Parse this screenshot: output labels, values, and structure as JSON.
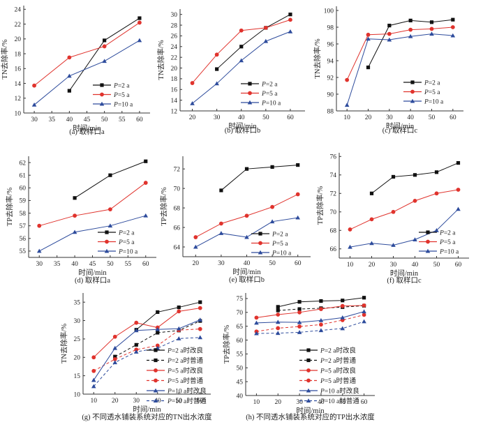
{
  "figure": {
    "colors": {
      "P2": "#111111",
      "P5": "#e0332d",
      "P10": "#2d4b9c"
    }
  },
  "chart_data": [
    {
      "id": "a",
      "type": "line",
      "caption": "(a) 取样口a",
      "xlabel": "时间/min",
      "ylabel": "TN去除率/%",
      "xlim": [
        27,
        63
      ],
      "ylim": [
        10,
        24.5
      ],
      "xticks": [
        30,
        35,
        40,
        45,
        50,
        55,
        60
      ],
      "yticks": [
        10,
        12,
        14,
        16,
        18,
        20,
        22,
        24
      ],
      "legend": "bottom-right",
      "series": [
        {
          "name": "P=2 a",
          "color_key": "P2",
          "marker": "square",
          "dash": false,
          "x": [
            40,
            50,
            60
          ],
          "values": [
            13.0,
            19.8,
            22.8
          ]
        },
        {
          "name": "P=5 a",
          "color_key": "P5",
          "marker": "circle",
          "dash": false,
          "x": [
            30,
            40,
            50,
            60
          ],
          "values": [
            13.7,
            17.5,
            19.0,
            22.2
          ]
        },
        {
          "name": "P=10 a",
          "color_key": "P10",
          "marker": "triangle",
          "dash": false,
          "x": [
            30,
            40,
            50,
            60
          ],
          "values": [
            11.1,
            15.0,
            17.0,
            19.8
          ]
        }
      ]
    },
    {
      "id": "b",
      "type": "line",
      "caption": "(b) 取样口b",
      "xlabel": "时间/min",
      "ylabel": "TN去除率/%",
      "xlim": [
        15,
        66
      ],
      "ylim": [
        12,
        31
      ],
      "xticks": [
        20,
        30,
        40,
        50,
        60
      ],
      "yticks": [
        12,
        14,
        16,
        18,
        20,
        22,
        24,
        26,
        28,
        30
      ],
      "legend": "bottom-right",
      "series": [
        {
          "name": "P=2 a",
          "color_key": "P2",
          "marker": "square",
          "dash": false,
          "x": [
            30,
            40,
            50,
            60
          ],
          "values": [
            19.8,
            24.0,
            27.5,
            30.0
          ]
        },
        {
          "name": "P=5 a",
          "color_key": "P5",
          "marker": "circle",
          "dash": false,
          "x": [
            20,
            30,
            40,
            50,
            60
          ],
          "values": [
            17.2,
            22.5,
            27.0,
            27.5,
            29.0
          ]
        },
        {
          "name": "P=10 a",
          "color_key": "P10",
          "marker": "triangle",
          "dash": false,
          "x": [
            20,
            30,
            40,
            50,
            60
          ],
          "values": [
            13.4,
            17.1,
            21.4,
            25.0,
            26.8
          ]
        }
      ]
    },
    {
      "id": "c",
      "type": "line",
      "caption": "(c) 取样口c",
      "xlabel": "时间/min",
      "ylabel": "TN去除率/%",
      "xlim": [
        5,
        65
      ],
      "ylim": [
        88,
        100.5
      ],
      "xticks": [
        10,
        20,
        30,
        40,
        50,
        60
      ],
      "yticks": [
        88,
        90,
        92,
        94,
        96,
        98,
        100
      ],
      "legend": "bottom-right",
      "series": [
        {
          "name": "P=2 a",
          "color_key": "P2",
          "marker": "square",
          "dash": false,
          "x": [
            20,
            30,
            40,
            50,
            60
          ],
          "values": [
            93.2,
            98.2,
            98.8,
            98.6,
            98.9
          ]
        },
        {
          "name": "P=5 a",
          "color_key": "P5",
          "marker": "circle",
          "dash": false,
          "x": [
            10,
            20,
            30,
            40,
            50,
            60
          ],
          "values": [
            91.7,
            97.1,
            97.2,
            97.7,
            97.8,
            98.0
          ]
        },
        {
          "name": "P=10 a",
          "color_key": "P10",
          "marker": "triangle",
          "dash": false,
          "x": [
            10,
            20,
            30,
            40,
            50,
            60
          ],
          "values": [
            88.7,
            96.6,
            96.5,
            96.9,
            97.2,
            97.0
          ]
        }
      ]
    },
    {
      "id": "d",
      "type": "line",
      "caption": "(d) 取样口a",
      "xlabel": "时间/min",
      "ylabel": "TP去除率/%",
      "xlim": [
        27,
        63
      ],
      "ylim": [
        54.5,
        62.5
      ],
      "xticks": [
        30,
        35,
        40,
        45,
        50,
        55,
        60
      ],
      "yticks": [
        55,
        56,
        57,
        58,
        59,
        60,
        61,
        62
      ],
      "legend": "bottom-right",
      "series": [
        {
          "name": "P=2 a",
          "color_key": "P2",
          "marker": "square",
          "dash": false,
          "x": [
            40,
            50,
            60
          ],
          "values": [
            59.2,
            61.0,
            62.1
          ]
        },
        {
          "name": "P=5 a",
          "color_key": "P5",
          "marker": "circle",
          "dash": false,
          "x": [
            30,
            40,
            50,
            60
          ],
          "values": [
            57.0,
            57.8,
            58.3,
            60.4
          ]
        },
        {
          "name": "P=10 a",
          "color_key": "P10",
          "marker": "triangle",
          "dash": false,
          "x": [
            30,
            40,
            50,
            60
          ],
          "values": [
            55.0,
            56.5,
            57.0,
            57.8
          ]
        }
      ]
    },
    {
      "id": "e",
      "type": "line",
      "caption": "(e) 取样口b",
      "xlabel": "时间/min",
      "ylabel": "TP去除率/%",
      "xlim": [
        15,
        65
      ],
      "ylim": [
        63,
        73.3
      ],
      "xticks": [
        20,
        30,
        40,
        50,
        60
      ],
      "yticks": [
        64,
        66,
        68,
        70,
        72
      ],
      "legend": "bottom-right",
      "series": [
        {
          "name": "P=2 a",
          "color_key": "P2",
          "marker": "square",
          "dash": false,
          "x": [
            30,
            40,
            50,
            60
          ],
          "values": [
            69.8,
            72.0,
            72.2,
            72.4
          ]
        },
        {
          "name": "P=5 a",
          "color_key": "P5",
          "marker": "circle",
          "dash": false,
          "x": [
            20,
            30,
            40,
            50,
            60
          ],
          "values": [
            65.0,
            66.4,
            67.2,
            68.1,
            69.4
          ]
        },
        {
          "name": "P=10 a",
          "color_key": "P10",
          "marker": "triangle",
          "dash": false,
          "x": [
            20,
            30,
            40,
            50,
            60
          ],
          "values": [
            64.0,
            65.4,
            65.0,
            66.6,
            67.0
          ]
        }
      ]
    },
    {
      "id": "f",
      "type": "line",
      "caption": "(f) 取样口c",
      "xlabel": "时间/min",
      "ylabel": "TP去除率/%",
      "xlim": [
        5,
        65
      ],
      "ylim": [
        65,
        76.4
      ],
      "xticks": [
        10,
        20,
        30,
        40,
        50,
        60
      ],
      "yticks": [
        66,
        68,
        70,
        72,
        74,
        76
      ],
      "legend": "bottom-right",
      "series": [
        {
          "name": "P=2 a",
          "color_key": "P2",
          "marker": "square",
          "dash": false,
          "x": [
            20,
            30,
            40,
            50,
            60
          ],
          "values": [
            72.0,
            73.8,
            74.0,
            74.3,
            75.3
          ]
        },
        {
          "name": "P=5 a",
          "color_key": "P5",
          "marker": "circle",
          "dash": false,
          "x": [
            10,
            20,
            30,
            40,
            50,
            60
          ],
          "values": [
            68.1,
            69.2,
            70.0,
            71.2,
            72.0,
            72.4
          ]
        },
        {
          "name": "P=10 a",
          "color_key": "P10",
          "marker": "triangle",
          "dash": false,
          "x": [
            10,
            20,
            30,
            40,
            50,
            60
          ],
          "values": [
            66.2,
            66.6,
            66.4,
            67.0,
            68.0,
            70.3
          ]
        }
      ]
    },
    {
      "id": "g",
      "type": "line",
      "caption": "(g) 不同透水铺装系统对应的TN出水浓度",
      "xlabel": "时间/min",
      "ylabel": "TN去除率/%",
      "xlim": [
        5,
        65
      ],
      "ylim": [
        10,
        37.5
      ],
      "xticks": [
        10,
        20,
        30,
        40,
        50,
        60
      ],
      "yticks": [
        10,
        15,
        20,
        25,
        30,
        35
      ],
      "legend": "bottom-right",
      "series": [
        {
          "name": "P=2 a时改良",
          "color_key": "P2",
          "marker": "square",
          "dash": false,
          "x": [
            30,
            40,
            50,
            60
          ],
          "values": [
            27.5,
            32.3,
            33.6,
            35.0
          ]
        },
        {
          "name": "P=2 a时普通",
          "color_key": "P2",
          "marker": "square",
          "dash": true,
          "x": [
            20,
            30,
            40,
            50,
            60
          ],
          "values": [
            20.2,
            23.4,
            26.7,
            27.3,
            29.9
          ]
        },
        {
          "name": "P=5 a时改良",
          "color_key": "P5",
          "marker": "circle",
          "dash": false,
          "x": [
            10,
            20,
            30,
            40,
            50,
            60
          ],
          "values": [
            20.0,
            25.6,
            29.4,
            28.1,
            32.5,
            33.4
          ]
        },
        {
          "name": "P=5 a时普通",
          "color_key": "P5",
          "marker": "circle",
          "dash": true,
          "x": [
            10,
            20,
            30,
            40,
            50,
            60
          ],
          "values": [
            16.3,
            19.5,
            22.1,
            23.2,
            27.4,
            27.7
          ]
        },
        {
          "name": "P=10 a时改良",
          "color_key": "P10",
          "marker": "triangle",
          "dash": false,
          "x": [
            10,
            20,
            30,
            40,
            50,
            60
          ],
          "values": [
            13.8,
            22.5,
            27.3,
            27.6,
            27.8,
            30.2
          ]
        },
        {
          "name": "P=10 a时普通",
          "color_key": "P10",
          "marker": "triangle",
          "dash": true,
          "x": [
            10,
            20,
            30,
            40,
            50,
            60
          ],
          "values": [
            12.1,
            18.6,
            21.5,
            22.5,
            25.1,
            25.4
          ]
        }
      ]
    },
    {
      "id": "h",
      "type": "line",
      "caption": "(h) 不同透水铺装系统对应的TP出水浓度",
      "xlabel": "时间/min",
      "ylabel": "TP去除率/%",
      "xlim": [
        5,
        65
      ],
      "ylim": [
        40,
        77
      ],
      "xticks": [
        10,
        20,
        30,
        40,
        50,
        60
      ],
      "yticks": [
        40,
        45,
        50,
        55,
        60,
        65,
        70,
        75
      ],
      "legend": "bottom-right",
      "series": [
        {
          "name": "P=2 a时改良",
          "color_key": "P2",
          "marker": "square",
          "dash": false,
          "x": [
            20,
            30,
            40,
            50,
            60
          ],
          "values": [
            72.0,
            73.8,
            74.1,
            74.3,
            75.3
          ]
        },
        {
          "name": "P=2 a时普通",
          "color_key": "P2",
          "marker": "square",
          "dash": true,
          "x": [
            20,
            30,
            40,
            50,
            60
          ],
          "values": [
            70.7,
            71.2,
            71.5,
            71.9,
            72.4
          ]
        },
        {
          "name": "P=5 a时改良",
          "color_key": "P5",
          "marker": "circle",
          "dash": false,
          "x": [
            10,
            20,
            30,
            40,
            50,
            60
          ],
          "values": [
            68.1,
            69.2,
            70.0,
            71.2,
            72.3,
            72.5
          ]
        },
        {
          "name": "P=5 a时普通",
          "color_key": "P5",
          "marker": "circle",
          "dash": true,
          "x": [
            10,
            20,
            30,
            40,
            50,
            60
          ],
          "values": [
            63.1,
            64.3,
            64.9,
            65.6,
            67.2,
            69.1
          ]
        },
        {
          "name": "P=10 a时改良",
          "color_key": "P10",
          "marker": "triangle",
          "dash": false,
          "x": [
            10,
            20,
            30,
            40,
            50,
            60
          ],
          "values": [
            66.2,
            66.5,
            66.4,
            67.1,
            68.1,
            70.3
          ]
        },
        {
          "name": "P=10 a时普通",
          "color_key": "P10",
          "marker": "triangle",
          "dash": true,
          "x": [
            10,
            20,
            30,
            40,
            50,
            60
          ],
          "values": [
            62.4,
            62.5,
            62.8,
            63.5,
            64.2,
            66.7
          ]
        }
      ]
    }
  ]
}
